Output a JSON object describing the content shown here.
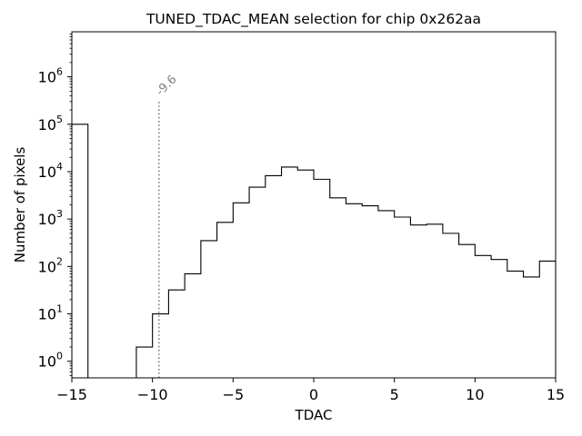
{
  "chart_data": {
    "type": "histogram",
    "title": "TUNED_TDAC_MEAN selection for chip 0x262aa",
    "xlabel": "TDAC",
    "ylabel": "Number of pixels",
    "xlim": [
      -15,
      15
    ],
    "ylim_log10": [
      -0.35,
      6.95
    ],
    "yscale": "log",
    "grid": false,
    "x_ticks": [
      -15,
      -10,
      -5,
      0,
      5,
      10,
      15
    ],
    "x_tick_labels": [
      "−15",
      "−10",
      "−5",
      "0",
      "5",
      "10",
      "15"
    ],
    "y_ticks": [
      {
        "value": 1,
        "base": "10",
        "exp": "0"
      },
      {
        "value": 10,
        "base": "10",
        "exp": "1"
      },
      {
        "value": 100,
        "base": "10",
        "exp": "2"
      },
      {
        "value": 1000,
        "base": "10",
        "exp": "3"
      },
      {
        "value": 10000,
        "base": "10",
        "exp": "4"
      },
      {
        "value": 100000,
        "base": "10",
        "exp": "5"
      },
      {
        "value": 1000000,
        "base": "10",
        "exp": "6"
      }
    ],
    "bins": [
      {
        "left": -15,
        "right": -14,
        "count": 100000
      },
      {
        "left": -14,
        "right": -13,
        "count": 0
      },
      {
        "left": -13,
        "right": -12,
        "count": 0
      },
      {
        "left": -12,
        "right": -11,
        "count": 0
      },
      {
        "left": -11,
        "right": -10,
        "count": 2
      },
      {
        "left": -10,
        "right": -9,
        "count": 10
      },
      {
        "left": -9,
        "right": -8,
        "count": 32
      },
      {
        "left": -8,
        "right": -7,
        "count": 70
      },
      {
        "left": -7,
        "right": -6,
        "count": 350
      },
      {
        "left": -6,
        "right": -5,
        "count": 850
      },
      {
        "left": -5,
        "right": -4,
        "count": 2200
      },
      {
        "left": -4,
        "right": -3,
        "count": 4700
      },
      {
        "left": -3,
        "right": -2,
        "count": 8200
      },
      {
        "left": -2,
        "right": -1,
        "count": 12500
      },
      {
        "left": -1,
        "right": 0,
        "count": 10800
      },
      {
        "left": 0,
        "right": 1,
        "count": 6900
      },
      {
        "left": 1,
        "right": 2,
        "count": 2800
      },
      {
        "left": 2,
        "right": 3,
        "count": 2100
      },
      {
        "left": 3,
        "right": 4,
        "count": 1900
      },
      {
        "left": 4,
        "right": 5,
        "count": 1500
      },
      {
        "left": 5,
        "right": 6,
        "count": 1100
      },
      {
        "left": 6,
        "right": 7,
        "count": 750
      },
      {
        "left": 7,
        "right": 8,
        "count": 780
      },
      {
        "left": 8,
        "right": 9,
        "count": 500
      },
      {
        "left": 9,
        "right": 10,
        "count": 290
      },
      {
        "left": 10,
        "right": 11,
        "count": 170
      },
      {
        "left": 11,
        "right": 12,
        "count": 140
      },
      {
        "left": 12,
        "right": 13,
        "count": 80
      },
      {
        "left": 13,
        "right": 14,
        "count": 60
      },
      {
        "left": 14,
        "right": 15,
        "count": 130
      }
    ],
    "annotation": {
      "type": "vline",
      "x": -9.6,
      "label": "-9.6",
      "color": "#808080",
      "style": "dotted",
      "y_top": 300000
    },
    "line_color": "#000000"
  }
}
